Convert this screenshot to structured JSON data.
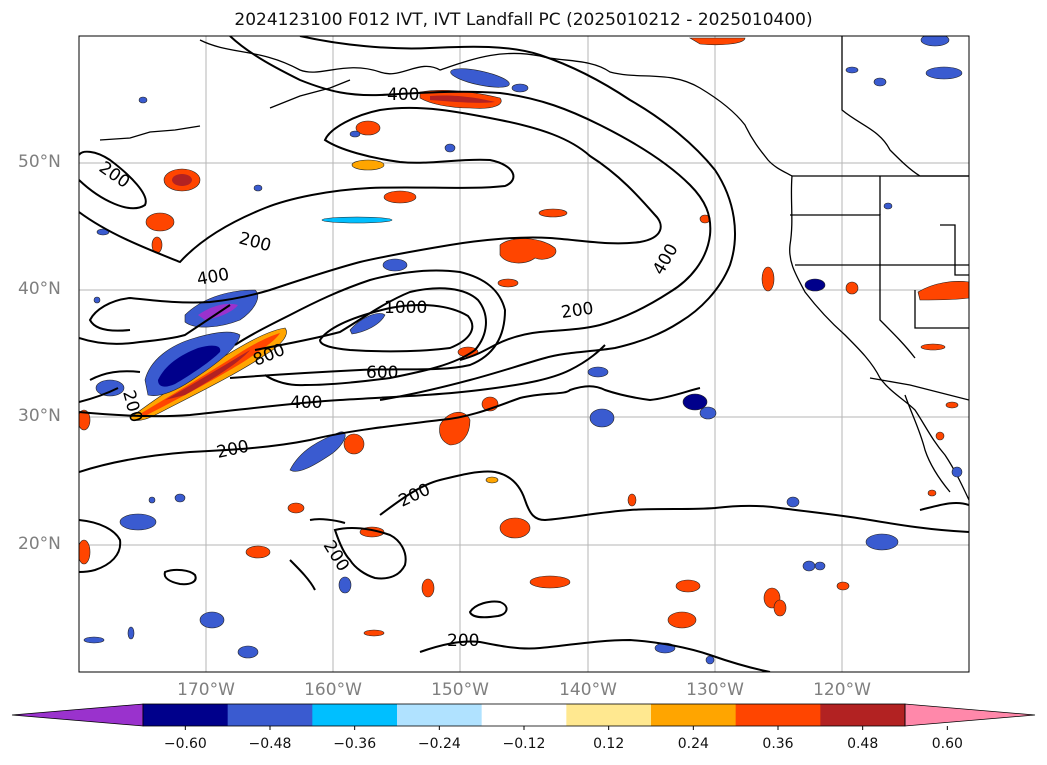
{
  "title": "2024123100 F012 IVT, IVT Landfall PC (2025010212 - 2025010400)",
  "lat_labels": [
    "50°N",
    "40°N",
    "30°N",
    "20°N"
  ],
  "lon_labels": [
    "170°W",
    "160°W",
    "150°W",
    "140°W",
    "130°W",
    "120°W"
  ],
  "contour_labels": {
    "c200_nw": "200",
    "c200_mid": "200",
    "c400_upper": "400",
    "c400_left": "400",
    "c1000": "1000",
    "c800": "800",
    "c600": "600",
    "c400_mid": "400",
    "c200_east": "200",
    "c400_east": "400",
    "c200_sw": "200",
    "c200_lower": "200",
    "c200_s1": "200",
    "c200_s2": "200",
    "c200_bottom": "200"
  },
  "colorbar": {
    "colors": [
      "#9a32cd",
      "#00008b",
      "#3a5bd0",
      "#00bfff",
      "#b0e2ff",
      "#ffffff",
      "#ffe890",
      "#ffa500",
      "#ff4500",
      "#b22222",
      "#ff88aa"
    ],
    "tick_labels": [
      "−0.60",
      "−0.48",
      "−0.36",
      "−0.24",
      "−0.12",
      "0.12",
      "0.24",
      "0.36",
      "0.48",
      "0.60"
    ]
  }
}
